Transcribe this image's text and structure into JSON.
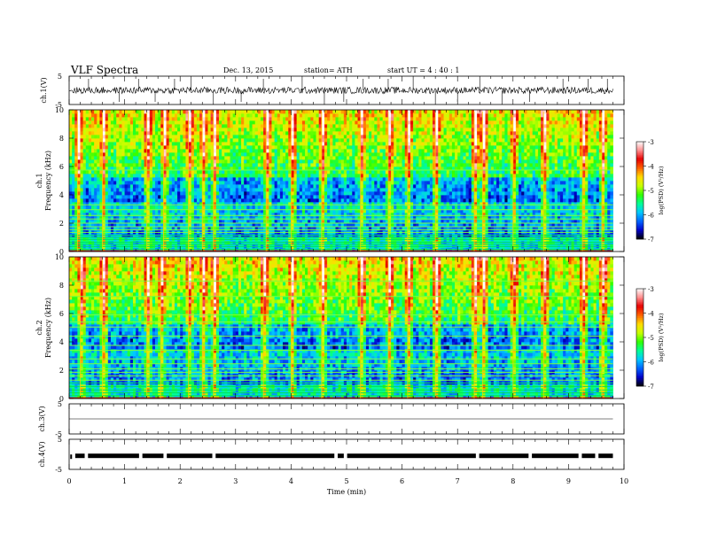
{
  "header": {
    "title": "VLF  Spectra",
    "date": "Dec. 13, 2015",
    "station": "station= ATH",
    "start": "start  UT  =   4  : 40 : 1"
  },
  "colorbar": {
    "label": "log(PSD) (V²/Hz)",
    "ticks": [
      "-3",
      "-4",
      "-5",
      "-6",
      "-7"
    ],
    "colors": [
      "#000000",
      "#0000c8",
      "#0064ff",
      "#00c8ff",
      "#00ff96",
      "#32ff00",
      "#c8ff00",
      "#ffdc00",
      "#ff6400",
      "#e60000",
      "#ff8c8c",
      "#ffffff"
    ]
  },
  "chart_data": [
    {
      "type": "line",
      "name": "ch1-waveform",
      "ylabel": "ch.1(V)",
      "ylim": [
        -5,
        5
      ],
      "yticks": [
        "5",
        "-5"
      ],
      "xlim": [
        0,
        10
      ],
      "baseline_value": 0,
      "noise_amplitude_v": 1.2,
      "spike_times_min": [
        0.35,
        0.9,
        1.25,
        1.55,
        1.9,
        2.2,
        2.6,
        3.1,
        3.5,
        4.2,
        4.6,
        4.95,
        5.3,
        5.75,
        6.2,
        6.6,
        7.0,
        7.4,
        7.8,
        8.3,
        8.9,
        9.35,
        9.7
      ]
    },
    {
      "type": "heatmap",
      "name": "ch1-spectrogram",
      "ylabel": "Frequency  (kHz)",
      "channel_label": "ch.1",
      "xlim": [
        0,
        10
      ],
      "ylim": [
        0,
        10
      ],
      "yticks": [
        "10",
        "8",
        "6",
        "4",
        "2",
        "0"
      ],
      "zlim": [
        -7,
        -3
      ],
      "data_end_min": 9.8,
      "hum_lines_khz": [
        0.15,
        0.35,
        0.5,
        0.65,
        0.85,
        1.0,
        1.15,
        1.35,
        1.55,
        1.75,
        2.0,
        2.3,
        2.55,
        2.95,
        3.3,
        5.75
      ],
      "impulsive_events_min": [
        0.15,
        0.6,
        1.4,
        1.7,
        2.15,
        2.4,
        2.6,
        3.55,
        4.0,
        4.55,
        5.25,
        5.75,
        6.1,
        6.6,
        7.3,
        7.45,
        8.0,
        8.55,
        9.25,
        9.6
      ]
    },
    {
      "type": "heatmap",
      "name": "ch2-spectrogram",
      "ylabel": "Frequency  (kHz)",
      "channel_label": "ch.2",
      "xlim": [
        0,
        10
      ],
      "ylim": [
        0,
        10
      ],
      "yticks": [
        "10",
        "8",
        "6",
        "4",
        "2",
        "0"
      ],
      "zlim": [
        -7,
        -3
      ],
      "data_end_min": 9.8,
      "hum_lines_khz": [
        0.2,
        0.4,
        0.6,
        0.85,
        1.1,
        1.3,
        1.6,
        1.85,
        2.1,
        2.45,
        2.8,
        3.4,
        3.75,
        4.4,
        5.05,
        5.4,
        5.9,
        7.2,
        8.3
      ],
      "impulsive_events_min": [
        0.2,
        0.6,
        1.4,
        1.65,
        2.15,
        2.4,
        2.6,
        3.5,
        4.0,
        4.55,
        5.25,
        5.75,
        6.1,
        6.6,
        7.3,
        7.45,
        8.0,
        8.55,
        9.25,
        9.6
      ]
    },
    {
      "type": "line",
      "name": "ch3-waveform",
      "ylabel": "ch.3(V)",
      "ylim": [
        -5,
        5
      ],
      "yticks": [
        "5",
        "-5"
      ],
      "xlim": [
        0,
        10
      ],
      "baseline_value": 0
    },
    {
      "type": "line",
      "name": "ch4-waveform",
      "ylabel": "ch.4(V)",
      "ylim": [
        -5,
        5
      ],
      "yticks": [
        "5",
        "-5"
      ],
      "xlim": [
        0,
        10
      ],
      "baseline_value": -0.5,
      "gap_times_min": [
        0.07,
        0.3,
        1.28,
        1.72,
        2.6,
        4.8,
        4.97,
        7.35,
        8.3,
        9.2,
        9.5
      ]
    }
  ],
  "xaxis": {
    "label": "Time  (min)",
    "ticks": [
      "0",
      "1",
      "2",
      "3",
      "4",
      "5",
      "6",
      "7",
      "8",
      "9",
      "10"
    ]
  }
}
